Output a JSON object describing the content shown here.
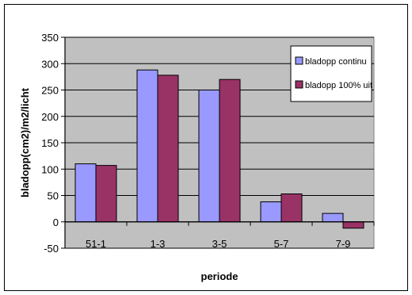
{
  "chart_data": {
    "type": "bar",
    "categories": [
      "51-1",
      "1-3",
      "3-5",
      "5-7",
      "7-9"
    ],
    "series": [
      {
        "name": "bladopp  continu",
        "values": [
          110,
          288,
          250,
          38,
          16
        ],
        "color": "#9999ff"
      },
      {
        "name": "bladopp 100% uit",
        "values": [
          107,
          278,
          270,
          53,
          -12
        ],
        "color": "#993366"
      }
    ],
    "xlabel": "periode",
    "ylabel": "bladopp(cm2)/m2/licht",
    "ylim": [
      -50,
      350
    ],
    "yticks": [
      -50,
      0,
      50,
      100,
      150,
      200,
      250,
      300,
      350
    ],
    "grid": true,
    "legend": "top-right",
    "plot_background": "#c0c0c0"
  }
}
